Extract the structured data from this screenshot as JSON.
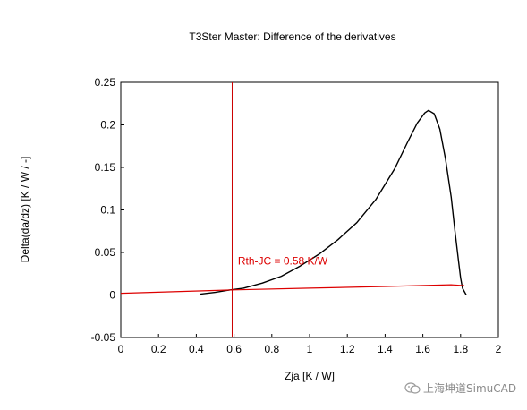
{
  "chart_data": {
    "type": "line",
    "title": "T3Ster Master: Difference of the derivatives",
    "xlabel": "Zja [K / W]",
    "ylabel": "Delta(da/dz) [K / W / -]",
    "xlim": [
      0,
      2
    ],
    "ylim": [
      -0.05,
      0.25
    ],
    "x_ticks": [
      0,
      0.2,
      0.4,
      0.6,
      0.8,
      1,
      1.2,
      1.4,
      1.6,
      1.8,
      2
    ],
    "x_tick_labels": [
      "0",
      "0.2",
      "0.4",
      "0.6",
      "0.8",
      "1",
      "1.2",
      "1.4",
      "1.6",
      "1.8",
      "2"
    ],
    "y_ticks": [
      -0.05,
      0,
      0.05,
      0.1,
      0.15,
      0.2,
      0.25
    ],
    "y_tick_labels": [
      "-0.05",
      "0",
      "0.05",
      "0.1",
      "0.15",
      "0.2",
      "0.25"
    ],
    "grid": false,
    "series": [
      {
        "color": "#000000",
        "x": [
          0.42,
          0.5,
          0.58,
          0.65,
          0.75,
          0.85,
          0.95,
          1.05,
          1.15,
          1.25,
          1.35,
          1.45,
          1.52,
          1.57,
          1.61,
          1.63,
          1.66,
          1.69,
          1.72,
          1.75,
          1.77,
          1.79,
          1.8,
          1.81,
          1.83
        ],
        "y": [
          0.001,
          0.003,
          0.006,
          0.008,
          0.014,
          0.022,
          0.034,
          0.048,
          0.065,
          0.085,
          0.112,
          0.148,
          0.18,
          0.202,
          0.214,
          0.217,
          0.213,
          0.195,
          0.16,
          0.115,
          0.075,
          0.038,
          0.02,
          0.008,
          0.0
        ]
      },
      {
        "color": "#dd0000",
        "x": [
          0,
          0.6,
          1.0,
          1.4,
          1.75,
          1.82
        ],
        "y": [
          0.002,
          0.006,
          0.008,
          0.01,
          0.012,
          0.011
        ]
      }
    ],
    "annotations": [
      {
        "text": "Rth-JC = 0.58 K/W",
        "x": 0.62,
        "y": 0.036,
        "color": "#dd0000"
      }
    ],
    "vline": {
      "x": 0.59,
      "color": "#cc0000"
    },
    "colors": {
      "axis": "#000000",
      "primary": "#000000",
      "accent": "#dd0000"
    }
  },
  "watermark": {
    "text": "上海坤道SimuCAD",
    "icon": "wechat-icon"
  }
}
